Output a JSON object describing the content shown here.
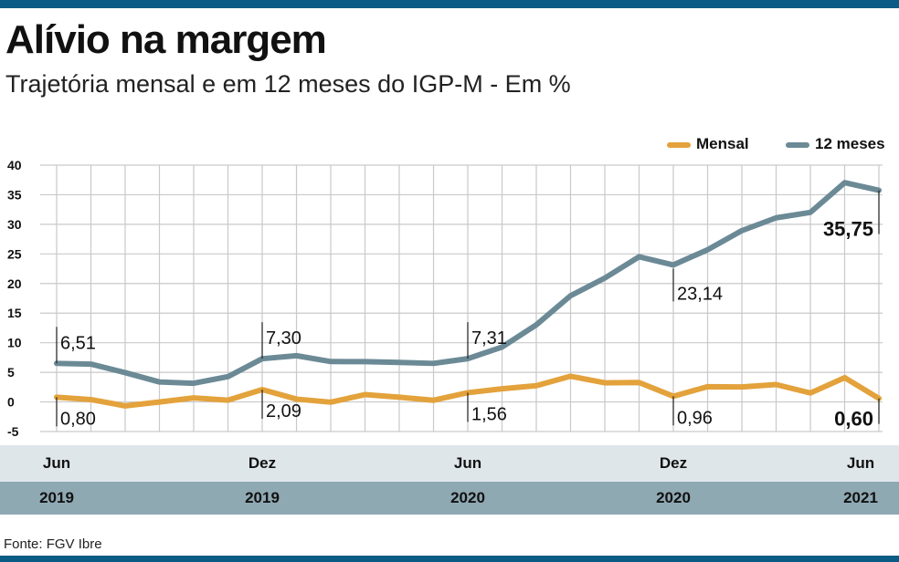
{
  "title": "Alívio na margem",
  "subtitle": "Trajetória mensal e em 12 meses do IGP-M - Em %",
  "source": "Fonte: FGV Ibre",
  "colors": {
    "mensal": "#e3a23b",
    "doze_meses": "#6b8a96",
    "top_bar": "#0b5c84",
    "band_light": "#dfe6ea",
    "band_dark": "#8fa9b3"
  },
  "chart_data": {
    "type": "line",
    "title": "Alívio na margem",
    "subtitle": "Trajetória mensal e em 12 meses do IGP-M - Em %",
    "legend_position": "top-right",
    "grid": true,
    "ylim": [
      -5,
      40
    ],
    "yticks": [
      "40",
      "35",
      "30",
      "25",
      "20",
      "15",
      "10",
      "5",
      "0",
      "-5"
    ],
    "ytick_values": [
      40,
      35,
      30,
      25,
      20,
      15,
      10,
      5,
      0,
      -5
    ],
    "x": [
      "Jun 2019",
      "Jul 2019",
      "Ago 2019",
      "Set 2019",
      "Out 2019",
      "Nov 2019",
      "Dez 2019",
      "Jan 2020",
      "Fev 2020",
      "Mar 2020",
      "Abr 2020",
      "Mai 2020",
      "Jun 2020",
      "Jul 2020",
      "Ago 2020",
      "Set 2020",
      "Out 2020",
      "Nov 2020",
      "Dez 2020",
      "Jan 2021",
      "Fev 2021",
      "Mar 2021",
      "Abr 2021",
      "Mai 2021",
      "Jun 2021"
    ],
    "xtick_months": [
      {
        "index": 0,
        "month": "Jun",
        "year": "2019"
      },
      {
        "index": 6,
        "month": "Dez",
        "year": "2019"
      },
      {
        "index": 12,
        "month": "Jun",
        "year": "2020"
      },
      {
        "index": 18,
        "month": "Dez",
        "year": "2020"
      },
      {
        "index": 24,
        "month": "Jun",
        "year": "2021"
      }
    ],
    "series": [
      {
        "name": "Mensal",
        "color": "#e3a23b",
        "values": [
          0.8,
          0.4,
          -0.67,
          -0.01,
          0.68,
          0.3,
          2.09,
          0.48,
          -0.04,
          1.24,
          0.8,
          0.28,
          1.56,
          2.23,
          2.74,
          4.34,
          3.23,
          3.28,
          0.96,
          2.58,
          2.53,
          2.94,
          1.51,
          4.1,
          0.6
        ]
      },
      {
        "name": "12 meses",
        "color": "#6b8a96",
        "values": [
          6.51,
          6.39,
          4.95,
          3.37,
          3.15,
          4.27,
          7.3,
          7.81,
          6.82,
          6.81,
          6.68,
          6.51,
          7.31,
          9.27,
          13.02,
          17.94,
          20.93,
          24.52,
          23.14,
          25.71,
          28.94,
          31.1,
          32.02,
          37.04,
          35.75
        ]
      }
    ],
    "annotations": [
      {
        "series": "12 meses",
        "index": 0,
        "label": "6,51",
        "bold": false
      },
      {
        "series": "12 meses",
        "index": 6,
        "label": "7,30",
        "bold": false
      },
      {
        "series": "12 meses",
        "index": 12,
        "label": "7,31",
        "bold": false
      },
      {
        "series": "12 meses",
        "index": 18,
        "label": "23,14",
        "bold": false
      },
      {
        "series": "12 meses",
        "index": 24,
        "label": "35,75",
        "bold": true
      },
      {
        "series": "Mensal",
        "index": 0,
        "label": "0,80",
        "bold": false
      },
      {
        "series": "Mensal",
        "index": 6,
        "label": "2,09",
        "bold": false
      },
      {
        "series": "Mensal",
        "index": 12,
        "label": "1,56",
        "bold": false
      },
      {
        "series": "Mensal",
        "index": 18,
        "label": "0,96",
        "bold": false
      },
      {
        "series": "Mensal",
        "index": 24,
        "label": "0,60",
        "bold": true
      }
    ]
  }
}
